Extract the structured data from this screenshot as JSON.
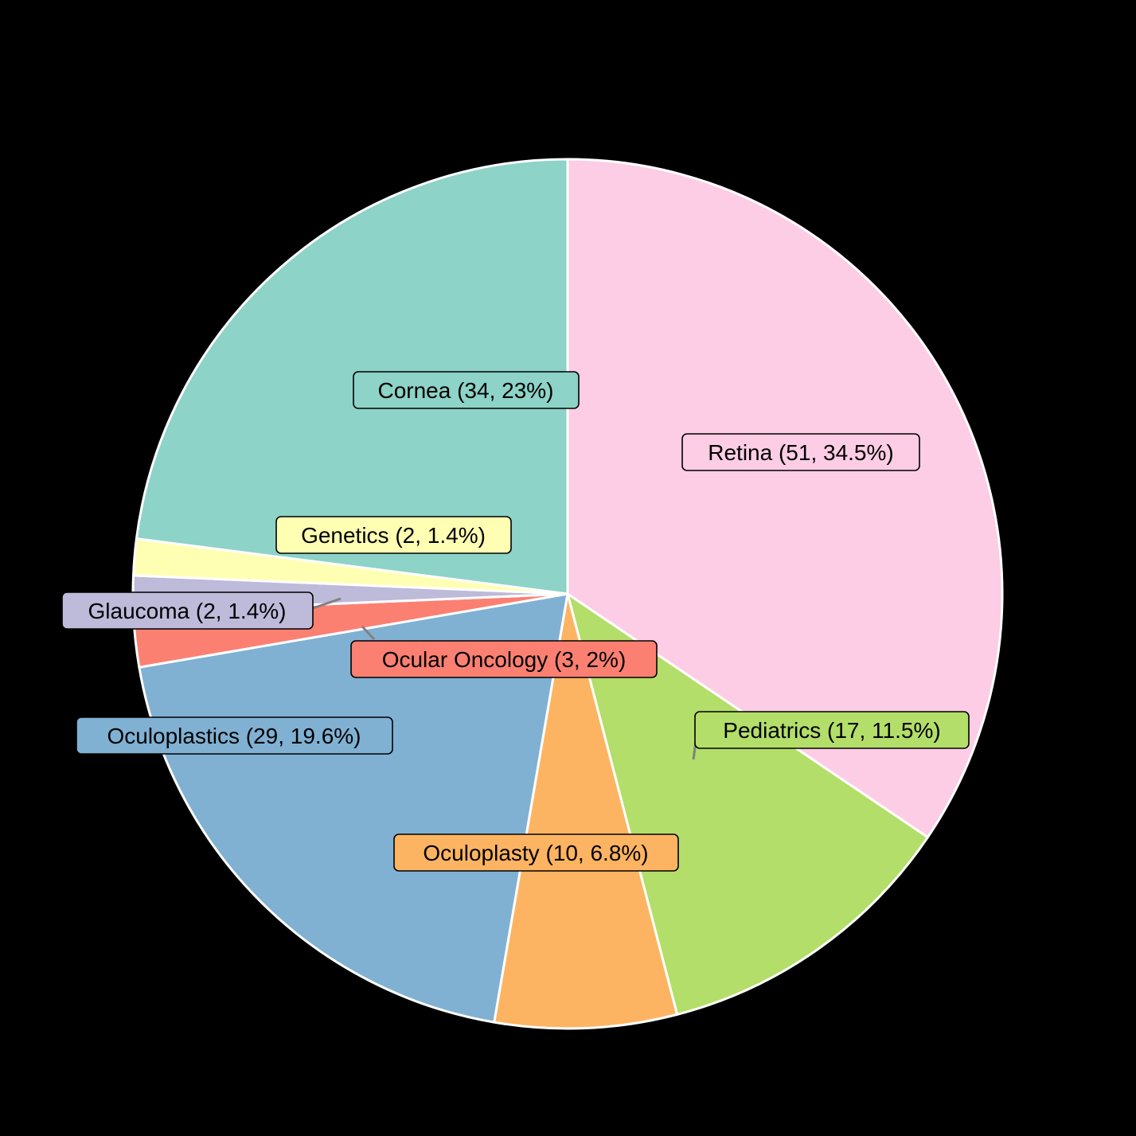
{
  "chart_data": {
    "type": "pie",
    "title": "",
    "start_angle_deg": 0,
    "direction": "clockwise",
    "total": 148,
    "slices": [
      {
        "label": "Retina",
        "value": 51,
        "percent": "34.5%",
        "color": "#FCCDE5",
        "text": "Retina (51, 34.5%)"
      },
      {
        "label": "Pediatrics",
        "value": 17,
        "percent": "11.5%",
        "color": "#B3DE69",
        "text": "Pediatrics (17, 11.5%)"
      },
      {
        "label": "Oculoplasty",
        "value": 10,
        "percent": "6.8%",
        "color": "#FDB462",
        "text": "Oculoplasty (10, 6.8%)"
      },
      {
        "label": "Oculoplastics",
        "value": 29,
        "percent": "19.6%",
        "color": "#80B1D3",
        "text": "Oculoplastics (29, 19.6%)"
      },
      {
        "label": "Ocular Oncology",
        "value": 3,
        "percent": "2%",
        "color": "#FB8072",
        "text": "Ocular Oncology (3, 2%)"
      },
      {
        "label": "Glaucoma",
        "value": 2,
        "percent": "1.4%",
        "color": "#BEBADA",
        "text": "Glaucoma (2, 1.4%)"
      },
      {
        "label": "Genetics",
        "value": 2,
        "percent": "1.4%",
        "color": "#FFFFB3",
        "text": "Genetics (2, 1.4%)"
      },
      {
        "label": "Cornea",
        "value": 34,
        "percent": "23%",
        "color": "#8DD3C7",
        "text": "Cornea (34, 23%)"
      }
    ],
    "legend": "none",
    "background": "#000000",
    "slice_border_color": "#FFFFFF"
  }
}
